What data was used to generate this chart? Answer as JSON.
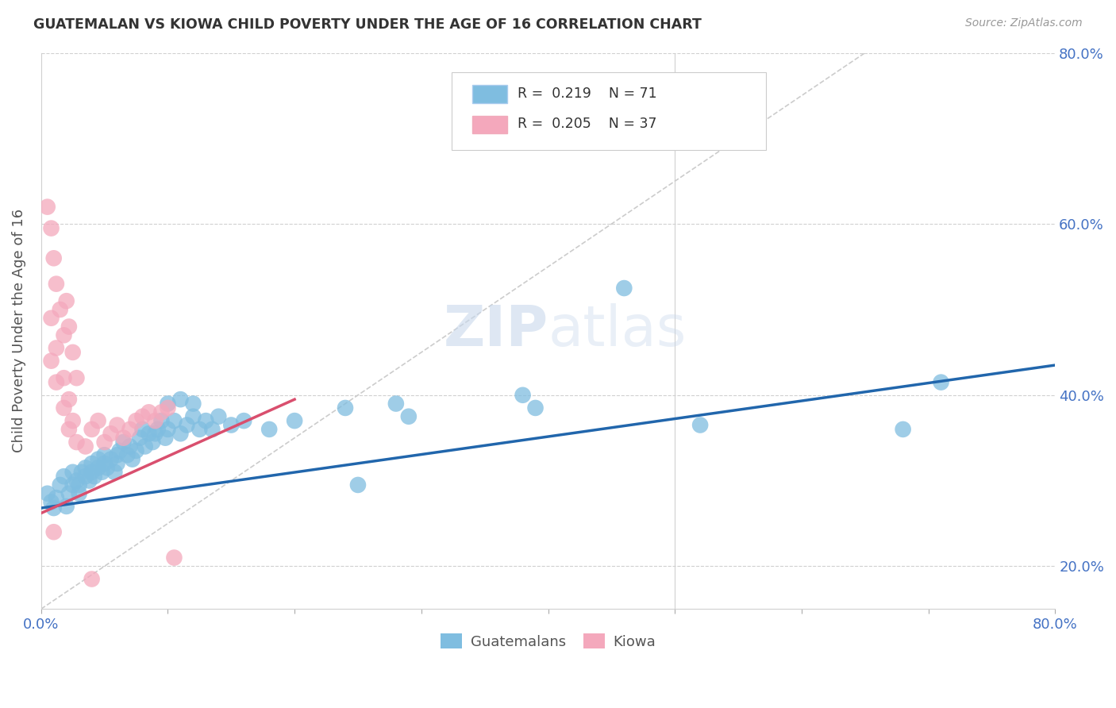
{
  "title": "GUATEMALAN VS KIOWA CHILD POVERTY UNDER THE AGE OF 16 CORRELATION CHART",
  "source": "Source: ZipAtlas.com",
  "ylabel": "Child Poverty Under the Age of 16",
  "xlim": [
    0,
    0.8
  ],
  "ylim": [
    0.15,
    0.8
  ],
  "background_color": "#ffffff",
  "blue_color": "#7fbde0",
  "pink_color": "#f4a8bc",
  "blue_line_color": "#2166ac",
  "pink_line_color": "#d94f6e",
  "dashed_color": "#cccccc",
  "legend_R1": "0.219",
  "legend_N1": "71",
  "legend_R2": "0.205",
  "legend_N2": "37",
  "guatemalan_points": [
    [
      0.005,
      0.285
    ],
    [
      0.008,
      0.275
    ],
    [
      0.01,
      0.268
    ],
    [
      0.012,
      0.28
    ],
    [
      0.015,
      0.295
    ],
    [
      0.018,
      0.305
    ],
    [
      0.02,
      0.27
    ],
    [
      0.022,
      0.285
    ],
    [
      0.025,
      0.31
    ],
    [
      0.025,
      0.295
    ],
    [
      0.028,
      0.3
    ],
    [
      0.03,
      0.285
    ],
    [
      0.03,
      0.295
    ],
    [
      0.032,
      0.31
    ],
    [
      0.035,
      0.305
    ],
    [
      0.035,
      0.315
    ],
    [
      0.038,
      0.3
    ],
    [
      0.04,
      0.31
    ],
    [
      0.04,
      0.32
    ],
    [
      0.042,
      0.305
    ],
    [
      0.045,
      0.315
    ],
    [
      0.045,
      0.325
    ],
    [
      0.048,
      0.31
    ],
    [
      0.05,
      0.32
    ],
    [
      0.05,
      0.33
    ],
    [
      0.052,
      0.315
    ],
    [
      0.055,
      0.325
    ],
    [
      0.058,
      0.31
    ],
    [
      0.06,
      0.32
    ],
    [
      0.06,
      0.33
    ],
    [
      0.062,
      0.335
    ],
    [
      0.065,
      0.345
    ],
    [
      0.068,
      0.33
    ],
    [
      0.07,
      0.34
    ],
    [
      0.072,
      0.325
    ],
    [
      0.075,
      0.335
    ],
    [
      0.078,
      0.35
    ],
    [
      0.08,
      0.36
    ],
    [
      0.082,
      0.34
    ],
    [
      0.085,
      0.355
    ],
    [
      0.088,
      0.345
    ],
    [
      0.09,
      0.355
    ],
    [
      0.092,
      0.36
    ],
    [
      0.095,
      0.37
    ],
    [
      0.098,
      0.35
    ],
    [
      0.1,
      0.36
    ],
    [
      0.105,
      0.37
    ],
    [
      0.11,
      0.355
    ],
    [
      0.115,
      0.365
    ],
    [
      0.12,
      0.375
    ],
    [
      0.125,
      0.36
    ],
    [
      0.13,
      0.37
    ],
    [
      0.135,
      0.36
    ],
    [
      0.14,
      0.375
    ],
    [
      0.15,
      0.365
    ],
    [
      0.16,
      0.37
    ],
    [
      0.1,
      0.39
    ],
    [
      0.11,
      0.395
    ],
    [
      0.12,
      0.39
    ],
    [
      0.18,
      0.36
    ],
    [
      0.2,
      0.37
    ],
    [
      0.24,
      0.385
    ],
    [
      0.25,
      0.295
    ],
    [
      0.28,
      0.39
    ],
    [
      0.29,
      0.375
    ],
    [
      0.38,
      0.4
    ],
    [
      0.39,
      0.385
    ],
    [
      0.46,
      0.525
    ],
    [
      0.52,
      0.365
    ],
    [
      0.68,
      0.36
    ],
    [
      0.71,
      0.415
    ]
  ],
  "kiowa_points": [
    [
      0.005,
      0.62
    ],
    [
      0.008,
      0.595
    ],
    [
      0.01,
      0.56
    ],
    [
      0.012,
      0.53
    ],
    [
      0.015,
      0.5
    ],
    [
      0.018,
      0.47
    ],
    [
      0.02,
      0.51
    ],
    [
      0.022,
      0.48
    ],
    [
      0.025,
      0.45
    ],
    [
      0.028,
      0.42
    ],
    [
      0.008,
      0.49
    ],
    [
      0.012,
      0.455
    ],
    [
      0.018,
      0.42
    ],
    [
      0.022,
      0.395
    ],
    [
      0.025,
      0.37
    ],
    [
      0.008,
      0.44
    ],
    [
      0.012,
      0.415
    ],
    [
      0.018,
      0.385
    ],
    [
      0.022,
      0.36
    ],
    [
      0.028,
      0.345
    ],
    [
      0.035,
      0.34
    ],
    [
      0.04,
      0.36
    ],
    [
      0.045,
      0.37
    ],
    [
      0.05,
      0.345
    ],
    [
      0.055,
      0.355
    ],
    [
      0.06,
      0.365
    ],
    [
      0.065,
      0.35
    ],
    [
      0.07,
      0.36
    ],
    [
      0.075,
      0.37
    ],
    [
      0.08,
      0.375
    ],
    [
      0.085,
      0.38
    ],
    [
      0.09,
      0.37
    ],
    [
      0.095,
      0.38
    ],
    [
      0.1,
      0.385
    ],
    [
      0.04,
      0.185
    ],
    [
      0.105,
      0.21
    ],
    [
      0.01,
      0.24
    ]
  ],
  "blue_trendline_x": [
    0.0,
    0.8
  ],
  "blue_trendline_y": [
    0.268,
    0.435
  ],
  "pink_trendline_x": [
    0.0,
    0.2
  ],
  "pink_trendline_y": [
    0.262,
    0.395
  ],
  "dashed_line_x": [
    0.0,
    0.8
  ],
  "dashed_line_y": [
    0.15,
    0.95
  ]
}
